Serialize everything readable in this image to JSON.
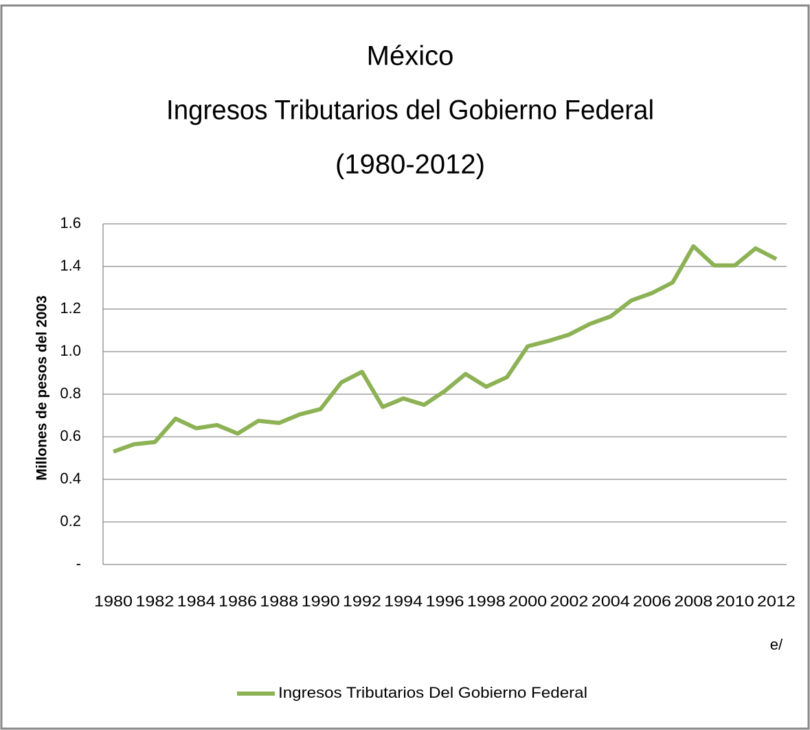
{
  "chart_data": {
    "type": "line",
    "title": [
      "México",
      "Ingresos Tributarios del Gobierno Federal",
      "(1980-2012)"
    ],
    "y_label": "Millones de pesos del 2003",
    "categories": [
      "1980",
      null,
      "1982",
      null,
      "1984",
      null,
      "1986",
      null,
      "1988",
      null,
      "1990",
      null,
      "1992",
      null,
      "1994",
      null,
      "1996",
      null,
      "1998",
      null,
      "2000",
      null,
      "2002",
      null,
      "2004",
      null,
      "2006",
      null,
      "2008",
      null,
      "2010",
      null,
      "2012"
    ],
    "category_note": "e/",
    "series": [
      {
        "name": "Ingresos Tributarios Del Gobierno Federal",
        "color": "#8db255",
        "values": [
          0.53,
          0.565,
          0.575,
          0.685,
          0.64,
          0.655,
          0.615,
          0.675,
          0.665,
          0.705,
          0.73,
          0.855,
          0.905,
          0.74,
          0.78,
          0.75,
          0.815,
          0.895,
          0.835,
          0.88,
          1.025,
          1.05,
          1.08,
          1.13,
          1.165,
          1.24,
          1.275,
          1.325,
          1.495,
          1.405,
          1.405,
          1.485,
          1.435
        ]
      }
    ],
    "ylim": [
      0,
      1.6
    ],
    "yticks": [
      {
        "value": 0,
        "label": "-"
      },
      0.2,
      0.4,
      0.6,
      0.8,
      {
        "value": 1.0,
        "label": "1.0"
      },
      1.2,
      1.4,
      1.6
    ],
    "grid": true,
    "legend": "bottom"
  }
}
